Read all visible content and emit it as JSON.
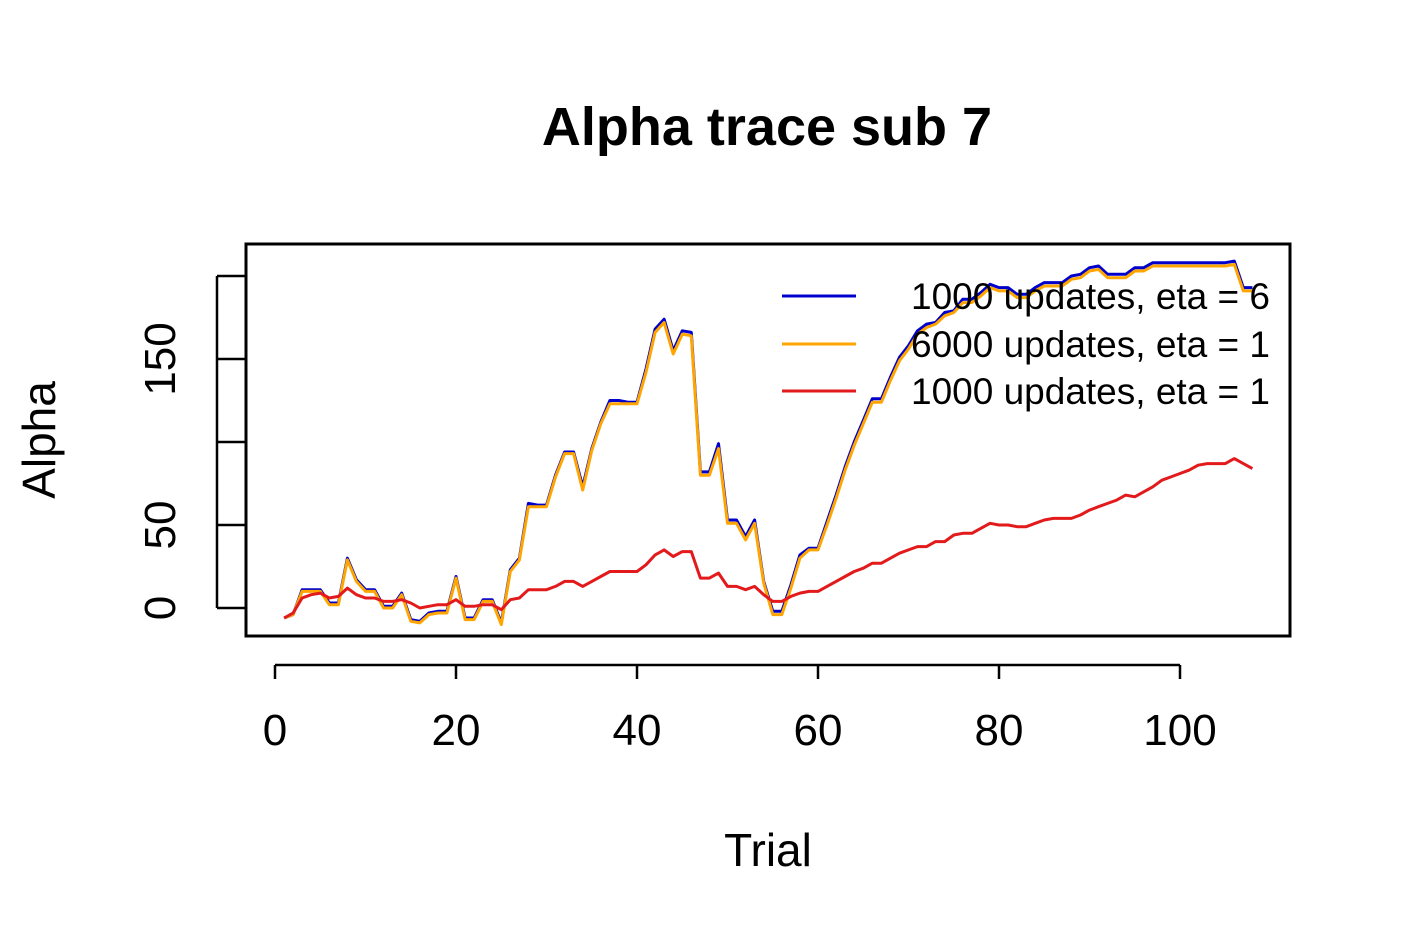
{
  "chart_data": {
    "type": "line",
    "title": "Alpha trace sub 7",
    "xlabel": "Trial",
    "ylabel": "Alpha",
    "xlim": [
      1,
      108
    ],
    "ylim": [
      -18,
      218
    ],
    "x_ticks": [
      0,
      20,
      40,
      60,
      80,
      100
    ],
    "y_ticks": [
      0,
      50,
      100,
      150,
      200
    ],
    "y_tick_labels": [
      "0",
      "50",
      "",
      "150",
      ""
    ],
    "grid": false,
    "legend_position": "top-right",
    "series": [
      {
        "name": "1000 updates, eta = 6",
        "color": "#0000CD",
        "x": [
          1,
          2,
          3,
          4,
          5,
          6,
          7,
          8,
          9,
          10,
          11,
          12,
          13,
          14,
          15,
          16,
          17,
          18,
          19,
          20,
          21,
          22,
          23,
          24,
          25,
          26,
          27,
          28,
          29,
          30,
          31,
          32,
          33,
          34,
          35,
          36,
          37,
          38,
          39,
          40,
          41,
          42,
          43,
          44,
          45,
          46,
          47,
          48,
          49,
          50,
          51,
          52,
          53,
          54,
          55,
          56,
          57,
          58,
          59,
          60,
          61,
          62,
          63,
          64,
          65,
          66,
          67,
          68,
          69,
          70,
          71,
          72,
          73,
          74,
          75,
          76,
          77,
          78,
          79,
          80,
          81,
          82,
          83,
          84,
          85,
          86,
          87,
          88,
          89,
          90,
          91,
          92,
          93,
          94,
          95,
          96,
          97,
          98,
          99,
          100,
          101,
          102,
          103,
          104,
          105,
          106,
          107,
          108
        ],
        "values": [
          -6,
          -4,
          11,
          11,
          11,
          3,
          3,
          30,
          17,
          11,
          11,
          1,
          1,
          9,
          -7,
          -8,
          -3,
          -2,
          -2,
          19,
          -6,
          -6,
          5,
          5,
          -9,
          23,
          30,
          63,
          62,
          62,
          80,
          94,
          94,
          73,
          96,
          112,
          125,
          125,
          124,
          124,
          144,
          168,
          174,
          155,
          167,
          166,
          82,
          82,
          99,
          53,
          53,
          43,
          53,
          16,
          -2,
          -2,
          14,
          32,
          36,
          36,
          52,
          68,
          85,
          100,
          113,
          126,
          126,
          139,
          151,
          158,
          167,
          171,
          172,
          178,
          179,
          186,
          186,
          190,
          195,
          193,
          193,
          189,
          189,
          193,
          196,
          196,
          196,
          200,
          201,
          205,
          206,
          201,
          201,
          201,
          205,
          205,
          208,
          208,
          208,
          208,
          208,
          208,
          208,
          208,
          208,
          209,
          193,
          193
        ]
      },
      {
        "name": "6000 updates, eta = 1",
        "color": "#FFA500",
        "x": [
          1,
          2,
          3,
          4,
          5,
          6,
          7,
          8,
          9,
          10,
          11,
          12,
          13,
          14,
          15,
          16,
          17,
          18,
          19,
          20,
          21,
          22,
          23,
          24,
          25,
          26,
          27,
          28,
          29,
          30,
          31,
          32,
          33,
          34,
          35,
          36,
          37,
          38,
          39,
          40,
          41,
          42,
          43,
          44,
          45,
          46,
          47,
          48,
          49,
          50,
          51,
          52,
          53,
          54,
          55,
          56,
          57,
          58,
          59,
          60,
          61,
          62,
          63,
          64,
          65,
          66,
          67,
          68,
          69,
          70,
          71,
          72,
          73,
          74,
          75,
          76,
          77,
          78,
          79,
          80,
          81,
          82,
          83,
          84,
          85,
          86,
          87,
          88,
          89,
          90,
          91,
          92,
          93,
          94,
          95,
          96,
          97,
          98,
          99,
          100,
          101,
          102,
          103,
          104,
          105,
          106,
          107,
          108
        ],
        "values": [
          -6,
          -4,
          10,
          10,
          10,
          2,
          2,
          29,
          16,
          10,
          10,
          0,
          0,
          8,
          -8,
          -9,
          -4,
          -3,
          -3,
          18,
          -7,
          -7,
          4,
          4,
          -10,
          22,
          29,
          61,
          61,
          61,
          79,
          93,
          93,
          71,
          95,
          111,
          123,
          123,
          123,
          123,
          142,
          166,
          172,
          153,
          165,
          164,
          80,
          80,
          96,
          51,
          51,
          41,
          51,
          15,
          -4,
          -4,
          12,
          30,
          35,
          35,
          50,
          66,
          83,
          98,
          111,
          124,
          124,
          137,
          149,
          156,
          165,
          169,
          171,
          176,
          178,
          184,
          184,
          188,
          193,
          191,
          191,
          187,
          187,
          191,
          194,
          194,
          194,
          198,
          199,
          203,
          204,
          199,
          199,
          199,
          203,
          203,
          206,
          206,
          206,
          206,
          206,
          206,
          206,
          206,
          206,
          207,
          191,
          191
        ]
      },
      {
        "name": "1000 updates, eta = 1",
        "color": "#E31A1C",
        "x": [
          1,
          2,
          3,
          4,
          5,
          6,
          7,
          8,
          9,
          10,
          11,
          12,
          13,
          14,
          15,
          16,
          17,
          18,
          19,
          20,
          21,
          22,
          23,
          24,
          25,
          26,
          27,
          28,
          29,
          30,
          31,
          32,
          33,
          34,
          35,
          36,
          37,
          38,
          39,
          40,
          41,
          42,
          43,
          44,
          45,
          46,
          47,
          48,
          49,
          50,
          51,
          52,
          53,
          54,
          55,
          56,
          57,
          58,
          59,
          60,
          61,
          62,
          63,
          64,
          65,
          66,
          67,
          68,
          69,
          70,
          71,
          72,
          73,
          74,
          75,
          76,
          77,
          78,
          79,
          80,
          81,
          82,
          83,
          84,
          85,
          86,
          87,
          88,
          89,
          90,
          91,
          92,
          93,
          94,
          95,
          96,
          97,
          98,
          99,
          100,
          101,
          102,
          103,
          104,
          105,
          106,
          107,
          108
        ],
        "values": [
          -6,
          -3,
          6,
          8,
          9,
          6,
          7,
          12,
          8,
          6,
          6,
          4,
          4,
          5,
          3,
          0,
          1,
          2,
          2,
          5,
          1,
          1,
          2,
          2,
          -1,
          5,
          6,
          11,
          11,
          11,
          13,
          16,
          16,
          13,
          16,
          19,
          22,
          22,
          22,
          22,
          26,
          32,
          35,
          31,
          34,
          34,
          18,
          18,
          21,
          13,
          13,
          11,
          13,
          8,
          4,
          4,
          7,
          9,
          10,
          10,
          13,
          16,
          19,
          22,
          24,
          27,
          27,
          30,
          33,
          35,
          37,
          37,
          40,
          40,
          44,
          45,
          45,
          48,
          51,
          50,
          50,
          49,
          49,
          51,
          53,
          54,
          54,
          54,
          56,
          59,
          61,
          63,
          65,
          68,
          67,
          70,
          73,
          77,
          79,
          81,
          83,
          86,
          87,
          87,
          87,
          90,
          87,
          84
        ]
      }
    ]
  }
}
